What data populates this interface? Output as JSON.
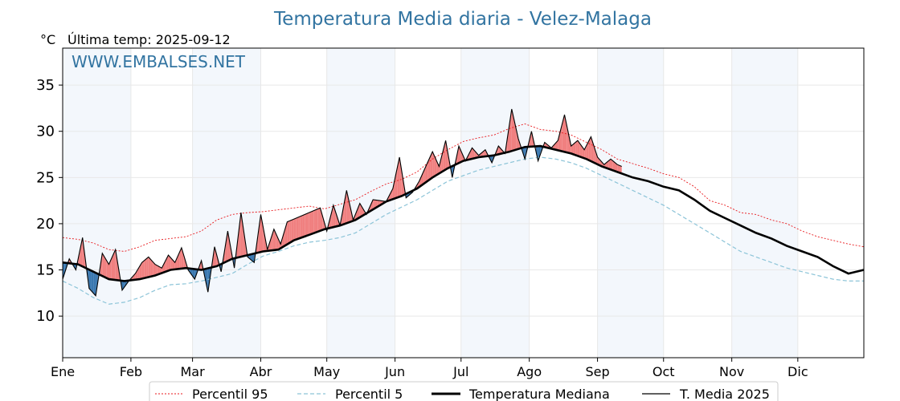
{
  "chart_data": {
    "type": "line",
    "title": "Temperatura Media diaria - Velez-Malaga",
    "ylabel": "°C",
    "subtitle": "Última temp: 2025-09-12",
    "watermark": "WWW.EMBALSES.NET",
    "ylim": [
      5.5,
      39
    ],
    "yticks": [
      10,
      15,
      20,
      25,
      30,
      35
    ],
    "months": [
      "Ene",
      "Feb",
      "Mar",
      "Abr",
      "May",
      "Jun",
      "Jul",
      "Ago",
      "Sep",
      "Oct",
      "Nov",
      "Dic"
    ],
    "month_start_days": [
      1,
      32,
      60,
      91,
      121,
      152,
      182,
      213,
      244,
      274,
      305,
      335
    ],
    "days_in_year": 365,
    "grid": true,
    "legend_position": "bottom-center",
    "colors": {
      "above_median": "#f08080",
      "below_median": "#3a78b0",
      "shade": "#f3f7fc",
      "p95": "#e8191d",
      "p5": "#8cc4d8",
      "median": "#000000",
      "year": "#000000",
      "title": "#3274a1"
    },
    "series": [
      {
        "name": "Percentil 95",
        "style": "dotted",
        "x": [
          1,
          8,
          15,
          22,
          29,
          36,
          43,
          50,
          57,
          64,
          71,
          78,
          85,
          92,
          99,
          106,
          113,
          120,
          127,
          134,
          141,
          148,
          155,
          162,
          169,
          176,
          183,
          190,
          197,
          204,
          211,
          218,
          225,
          232,
          239,
          246,
          253,
          260,
          267,
          274,
          281,
          288,
          295,
          302,
          309,
          316,
          323,
          330,
          337,
          344,
          351,
          358,
          365
        ],
        "values": [
          18.5,
          18.3,
          17.9,
          17.2,
          17.0,
          17.5,
          18.2,
          18.4,
          18.6,
          19.2,
          20.4,
          21.0,
          21.2,
          21.3,
          21.5,
          21.7,
          21.9,
          21.6,
          22.1,
          22.6,
          23.5,
          24.3,
          24.8,
          25.6,
          27.0,
          28.0,
          28.9,
          29.3,
          29.6,
          30.3,
          30.8,
          30.2,
          30.0,
          29.6,
          28.8,
          28.0,
          27.0,
          26.5,
          26.0,
          25.4,
          25.0,
          24.0,
          22.5,
          22.0,
          21.2,
          21.0,
          20.4,
          20.0,
          19.2,
          18.6,
          18.2,
          17.8,
          17.5
        ]
      },
      {
        "name": "Percentil 5",
        "style": "dashed",
        "x": [
          1,
          8,
          15,
          22,
          29,
          36,
          43,
          50,
          57,
          64,
          71,
          78,
          85,
          92,
          99,
          106,
          113,
          120,
          127,
          134,
          141,
          148,
          155,
          162,
          169,
          176,
          183,
          190,
          197,
          204,
          211,
          218,
          225,
          232,
          239,
          246,
          253,
          260,
          267,
          274,
          281,
          288,
          295,
          302,
          309,
          316,
          323,
          330,
          337,
          344,
          351,
          358,
          365
        ],
        "values": [
          13.8,
          13.0,
          12.0,
          11.3,
          11.5,
          12.0,
          12.8,
          13.4,
          13.5,
          13.8,
          14.2,
          14.6,
          15.6,
          16.5,
          17.0,
          17.6,
          18.0,
          18.2,
          18.5,
          19.0,
          20.0,
          21.0,
          21.8,
          22.6,
          23.6,
          24.6,
          25.2,
          25.8,
          26.2,
          26.6,
          27.0,
          27.2,
          27.0,
          26.6,
          26.0,
          25.2,
          24.4,
          23.6,
          22.8,
          22.0,
          21.0,
          20.0,
          19.0,
          18.0,
          17.0,
          16.4,
          15.8,
          15.2,
          14.8,
          14.4,
          14.0,
          13.8,
          13.8
        ]
      },
      {
        "name": "Temperatura Mediana",
        "style": "solid-thick",
        "x": [
          1,
          8,
          15,
          22,
          29,
          36,
          43,
          50,
          57,
          64,
          71,
          78,
          85,
          92,
          99,
          106,
          113,
          120,
          127,
          134,
          141,
          148,
          155,
          162,
          169,
          176,
          183,
          190,
          197,
          204,
          211,
          218,
          225,
          232,
          239,
          246,
          253,
          260,
          267,
          274,
          281,
          288,
          295,
          302,
          309,
          316,
          323,
          330,
          337,
          344,
          351,
          358,
          365
        ],
        "values": [
          15.8,
          15.6,
          14.8,
          14.0,
          13.8,
          14.0,
          14.4,
          15.0,
          15.2,
          15.0,
          15.4,
          16.2,
          16.6,
          17.0,
          17.2,
          18.2,
          18.8,
          19.4,
          19.8,
          20.4,
          21.4,
          22.4,
          23.0,
          23.8,
          25.0,
          26.0,
          26.8,
          27.2,
          27.4,
          27.8,
          28.3,
          28.4,
          28.0,
          27.6,
          27.0,
          26.2,
          25.6,
          25.0,
          24.6,
          24.0,
          23.6,
          22.6,
          21.4,
          20.6,
          19.8,
          19.0,
          18.4,
          17.6,
          17.0,
          16.4,
          15.4,
          14.6,
          15.0
        ]
      },
      {
        "name": "T. Media 2025",
        "style": "solid-thin",
        "x": [
          1,
          4,
          7,
          10,
          13,
          16,
          19,
          22,
          25,
          28,
          31,
          34,
          37,
          40,
          43,
          46,
          49,
          52,
          55,
          58,
          61,
          64,
          67,
          70,
          73,
          76,
          79,
          82,
          85,
          88,
          91,
          94,
          97,
          100,
          103,
          106,
          109,
          112,
          115,
          118,
          121,
          124,
          127,
          130,
          133,
          136,
          139,
          142,
          145,
          148,
          151,
          154,
          157,
          160,
          163,
          166,
          169,
          172,
          175,
          178,
          181,
          184,
          187,
          190,
          193,
          196,
          199,
          202,
          205,
          208,
          211,
          214,
          217,
          220,
          223,
          226,
          229,
          232,
          235,
          238,
          241,
          244,
          247,
          250,
          253,
          255
        ],
        "values": [
          14.0,
          16.2,
          15.0,
          18.5,
          13.0,
          12.2,
          16.8,
          15.6,
          17.2,
          12.8,
          13.8,
          14.6,
          15.8,
          16.4,
          15.6,
          15.2,
          16.6,
          15.8,
          17.4,
          15.0,
          14.0,
          16.0,
          12.6,
          17.5,
          14.8,
          19.2,
          15.2,
          21.2,
          16.4,
          15.8,
          21.0,
          17.2,
          19.4,
          17.8,
          20.2,
          20.5,
          20.8,
          21.1,
          21.4,
          21.7,
          19.2,
          22.0,
          19.8,
          23.6,
          20.4,
          22.2,
          21.0,
          22.6,
          22.5,
          22.4,
          23.8,
          27.2,
          22.8,
          23.4,
          24.6,
          26.2,
          27.8,
          26.2,
          29.0,
          25.0,
          28.4,
          26.8,
          28.2,
          27.4,
          28.0,
          26.6,
          28.4,
          27.6,
          32.4,
          29.2,
          27.0,
          30.0,
          26.8,
          28.8,
          28.2,
          29.0,
          31.8,
          28.4,
          29.0,
          28.0,
          29.4,
          27.2,
          26.4,
          27.0,
          26.4,
          26.2
        ]
      }
    ]
  }
}
